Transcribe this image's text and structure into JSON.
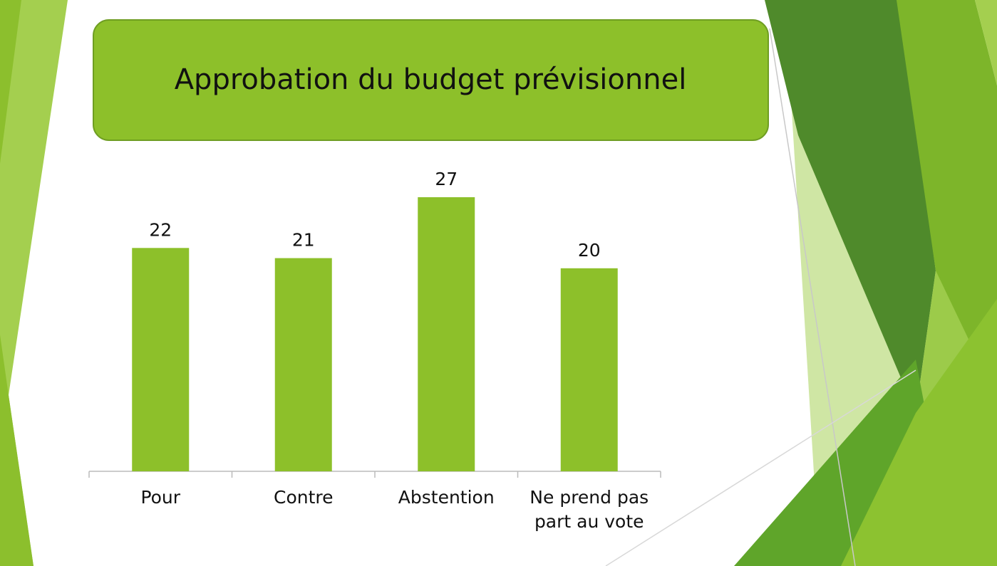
{
  "chart_data": {
    "type": "bar",
    "title": "Approbation du budget prévisionnel",
    "categories": [
      "Pour",
      "Contre",
      "Abstention",
      "Ne prend pas part au vote"
    ],
    "values": [
      22,
      21,
      27,
      20
    ],
    "color": "#8dc02a"
  }
}
